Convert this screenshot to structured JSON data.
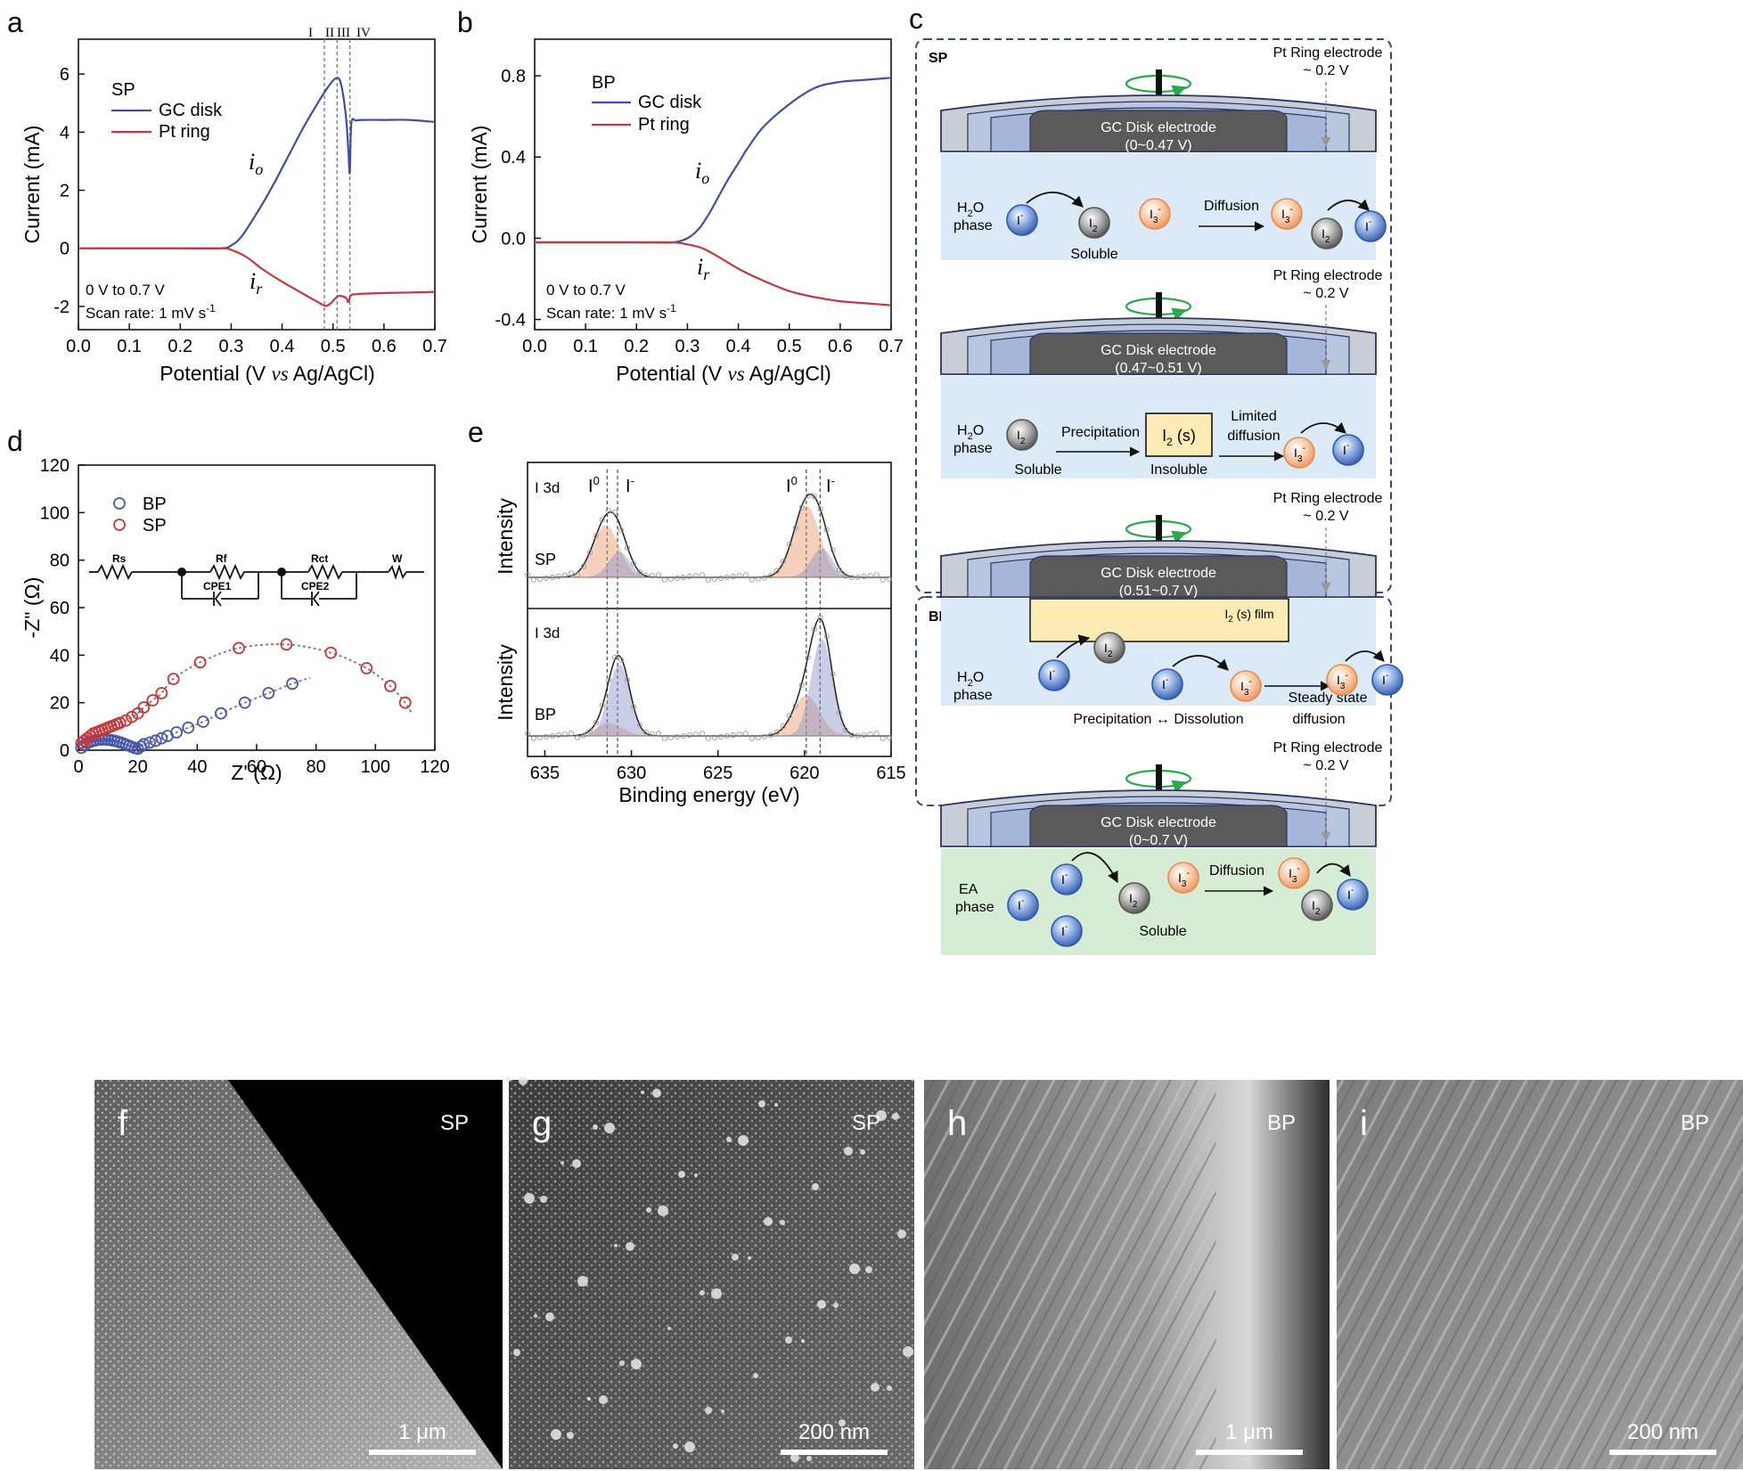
{
  "panels": {
    "a": {
      "letter": "a",
      "ylabel": "Current (mA)",
      "xlabel_parts": [
        "Potential (V ",
        "vs",
        " Ag/AgCl)"
      ],
      "legend_title": "SP",
      "legend": [
        "GC disk",
        "Pt ring"
      ],
      "note1": "0 V to 0.7 V",
      "note2": "Scan rate: 1 mV s",
      "note2_sup": "-1",
      "io": "i",
      "io_sub": "o",
      "ir": "i",
      "ir_sub": "r",
      "regions": [
        "I",
        "II",
        "III",
        "IV"
      ],
      "xticks": [
        "0.0",
        "0.1",
        "0.2",
        "0.3",
        "0.4",
        "0.5",
        "0.6",
        "0.7"
      ],
      "yticks": [
        "-2",
        "0",
        "2",
        "4",
        "6"
      ]
    },
    "b": {
      "letter": "b",
      "ylabel": "Current (mA)",
      "xlabel_parts": [
        "Potential (V ",
        "vs",
        " Ag/AgCl)"
      ],
      "legend_title": "BP",
      "legend": [
        "GC disk",
        "Pt ring"
      ],
      "note1": "0 V to 0.7 V",
      "note2": "Scan rate: 1 mV s",
      "note2_sup": "-1",
      "io": "i",
      "io_sub": "o",
      "ir": "i",
      "ir_sub": "r",
      "xticks": [
        "0.0",
        "0.1",
        "0.2",
        "0.3",
        "0.4",
        "0.5",
        "0.6",
        "0.7"
      ],
      "yticks": [
        "-0.4",
        "0.0",
        "0.4",
        "0.8"
      ]
    },
    "c": {
      "letter": "c",
      "sp_label": "SP",
      "bp_label": "BP",
      "ring_label": "Pt Ring electrode",
      "ring_voltage": "~ 0.2 V",
      "disk_label": "GC Disk electrode",
      "disk_ranges": [
        "(0~0.47 V)",
        "(0.47~0.51 V)",
        "(0.51~0.7 V)",
        "(0~0.7 V)"
      ],
      "phase_h2o": "H",
      "phase_h2o_sub": "2",
      "phase_h2o_end": "O",
      "phase": "phase",
      "phase_ea": "EA",
      "ion_i": "I",
      "ion_i_sup": "-",
      "ion_i2": "I",
      "ion_i2_sub": "2",
      "ion_i3": "I",
      "ion_i3_sub": "3",
      "ion_i3_sup": "-",
      "soluble": "Soluble",
      "insoluble": "Insoluble",
      "diffusion": "Diffusion",
      "precipitation": "Precipitation",
      "limited": "Limited",
      "diffusion_low": "diffusion",
      "i2s": "I",
      "i2s_sub": "2",
      "i2s_end": " (s)",
      "i2s_film": " (s) film",
      "precip_dissol": "Precipitation ↔ Dissolution",
      "steady": "Steady state",
      "steady2": "diffusion"
    },
    "d": {
      "letter": "d",
      "ylabel": "-Z\" (Ω)",
      "xlabel": "Z' (Ω)",
      "legend": [
        "BP",
        "SP"
      ],
      "circuit": [
        "Rs",
        "Rf",
        "Rct",
        "W",
        "CPE1",
        "CPE2"
      ],
      "xticks": [
        "0",
        "20",
        "40",
        "60",
        "80",
        "100",
        "120"
      ],
      "yticks": [
        "0",
        "20",
        "40",
        "60",
        "80",
        "100",
        "120"
      ]
    },
    "e": {
      "letter": "e",
      "ylabel": "Intensity",
      "xlabel": "Binding energy (eV)",
      "region": "I 3d",
      "sp": "SP",
      "bp": "BP",
      "i0": "I",
      "i0_sup": "0",
      "im": "I",
      "im_sup": "-",
      "xticks": [
        "635",
        "630",
        "625",
        "620",
        "615"
      ]
    },
    "sem": [
      {
        "letter": "f",
        "tag": "SP",
        "scale": "1 μm"
      },
      {
        "letter": "g",
        "tag": "SP",
        "scale": "200 nm"
      },
      {
        "letter": "h",
        "tag": "BP",
        "scale": "1 μm"
      },
      {
        "letter": "i",
        "tag": "BP",
        "scale": "200 nm"
      }
    ]
  },
  "colors": {
    "gc_disk": "#3f4fa0",
    "pt_ring": "#c0393e",
    "bp_marker": "#4a58a8",
    "sp_marker": "#c8363a",
    "dashed_box": "#3a4a6e",
    "water_bg": "#dce9f7",
    "ea_bg": "#d7ecd5",
    "film": "#fcebb4",
    "arrow_green": "#2aa84a"
  },
  "chart_data": [
    {
      "panel": "a",
      "type": "line",
      "xlabel": "Potential (V vs Ag/AgCl)",
      "ylabel": "Current (mA)",
      "xlim": [
        0,
        0.7
      ],
      "ylim": [
        -2.8,
        7.2
      ],
      "series": [
        {
          "name": "GC disk",
          "x": [
            0,
            0.1,
            0.2,
            0.28,
            0.3,
            0.32,
            0.35,
            0.38,
            0.41,
            0.44,
            0.47,
            0.49,
            0.505,
            0.515,
            0.525,
            0.53,
            0.533,
            0.536,
            0.545,
            0.56,
            0.6,
            0.65,
            0.7
          ],
          "y": [
            0,
            0,
            0,
            0,
            0.1,
            0.4,
            1.2,
            2.1,
            3.1,
            4.1,
            5.0,
            5.55,
            5.85,
            5.7,
            4.6,
            3.4,
            2.6,
            4.3,
            4.4,
            4.42,
            4.42,
            4.42,
            4.35
          ]
        },
        {
          "name": "Pt ring",
          "x": [
            0,
            0.1,
            0.2,
            0.28,
            0.3,
            0.33,
            0.36,
            0.4,
            0.44,
            0.47,
            0.485,
            0.495,
            0.51,
            0.525,
            0.53,
            0.535,
            0.545,
            0.56,
            0.6,
            0.65,
            0.7
          ],
          "y": [
            0,
            0,
            0,
            0,
            -0.05,
            -0.3,
            -0.7,
            -1.15,
            -1.55,
            -1.85,
            -1.98,
            -1.9,
            -1.65,
            -1.7,
            -1.85,
            -1.62,
            -1.58,
            -1.56,
            -1.54,
            -1.52,
            -1.5
          ]
        }
      ]
    },
    {
      "panel": "b",
      "type": "line",
      "xlabel": "Potential (V vs Ag/AgCl)",
      "ylabel": "Current (mA)",
      "xlim": [
        0,
        0.7
      ],
      "ylim": [
        -0.45,
        0.98
      ],
      "series": [
        {
          "name": "GC disk",
          "x": [
            0,
            0.1,
            0.2,
            0.27,
            0.3,
            0.32,
            0.34,
            0.36,
            0.38,
            0.4,
            0.42,
            0.45,
            0.5,
            0.55,
            0.6,
            0.65,
            0.7
          ],
          "y": [
            -0.02,
            -0.02,
            -0.02,
            -0.02,
            0.0,
            0.04,
            0.11,
            0.2,
            0.29,
            0.37,
            0.45,
            0.55,
            0.66,
            0.74,
            0.77,
            0.78,
            0.79
          ]
        },
        {
          "name": "Pt ring",
          "x": [
            0,
            0.1,
            0.2,
            0.27,
            0.3,
            0.33,
            0.36,
            0.4,
            0.45,
            0.5,
            0.55,
            0.6,
            0.65,
            0.7
          ],
          "y": [
            -0.02,
            -0.02,
            -0.02,
            -0.02,
            -0.03,
            -0.05,
            -0.09,
            -0.15,
            -0.21,
            -0.26,
            -0.29,
            -0.31,
            -0.32,
            -0.33
          ]
        }
      ]
    },
    {
      "panel": "d",
      "type": "scatter",
      "xlabel": "Z' (Ω)",
      "ylabel": "-Z\" (Ω)",
      "xlim": [
        0,
        120
      ],
      "ylim": [
        0,
        120
      ],
      "series": [
        {
          "name": "BP",
          "x": [
            1,
            2,
            3,
            4,
            5,
            6,
            7,
            8,
            9,
            10,
            11,
            12,
            13,
            14,
            15,
            16,
            17,
            18,
            19,
            20,
            21,
            22,
            24,
            26,
            28,
            30,
            33,
            37,
            42,
            48,
            56,
            64,
            72
          ],
          "y": [
            1,
            2,
            3,
            3.5,
            4,
            4.2,
            4.4,
            4.5,
            4.5,
            4.4,
            4.2,
            4,
            3.7,
            3.3,
            2.9,
            2.4,
            1.9,
            1.4,
            0.9,
            0.6,
            1.5,
            2.5,
            3.2,
            4,
            5,
            6,
            7.5,
            9.5,
            12,
            15.5,
            20,
            24,
            28
          ]
        },
        {
          "name": "SP",
          "x": [
            1,
            2,
            3,
            4,
            5,
            6,
            7,
            8,
            9,
            10,
            11,
            12,
            13,
            14,
            16,
            18,
            20,
            22,
            25,
            28,
            32,
            41,
            54,
            70,
            85,
            97,
            105,
            110
          ],
          "y": [
            3,
            4,
            5,
            6,
            7,
            7.5,
            8,
            8.5,
            9,
            9.5,
            10,
            10.5,
            11,
            11.5,
            12.5,
            14,
            15.5,
            18,
            21,
            24,
            30,
            37,
            43,
            44.5,
            41,
            34.5,
            27,
            20
          ]
        }
      ]
    }
  ]
}
